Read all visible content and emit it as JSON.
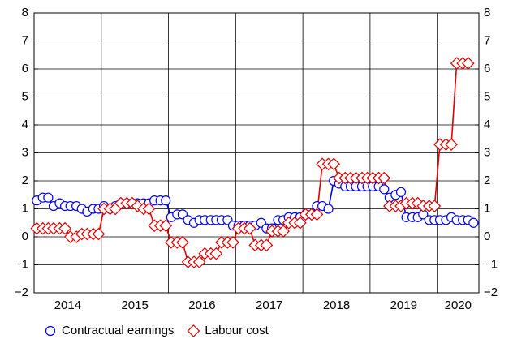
{
  "chart_data": {
    "type": "line",
    "x": [
      2014.04,
      2014.13,
      2014.21,
      2014.29,
      2014.38,
      2014.46,
      2014.54,
      2014.63,
      2014.71,
      2014.79,
      2014.88,
      2014.96,
      2015.04,
      2015.13,
      2015.21,
      2015.29,
      2015.38,
      2015.46,
      2015.54,
      2015.63,
      2015.71,
      2015.79,
      2015.88,
      2015.96,
      2016.04,
      2016.13,
      2016.21,
      2016.29,
      2016.38,
      2016.46,
      2016.54,
      2016.63,
      2016.71,
      2016.79,
      2016.88,
      2016.96,
      2017.04,
      2017.13,
      2017.21,
      2017.29,
      2017.38,
      2017.46,
      2017.54,
      2017.63,
      2017.71,
      2017.79,
      2017.88,
      2017.96,
      2018.04,
      2018.13,
      2018.21,
      2018.29,
      2018.38,
      2018.46,
      2018.54,
      2018.63,
      2018.71,
      2018.79,
      2018.88,
      2018.96,
      2019.04,
      2019.13,
      2019.21,
      2019.29,
      2019.38,
      2019.46,
      2019.54,
      2019.63,
      2019.71,
      2019.79,
      2019.88,
      2019.96,
      2020.04,
      2020.13,
      2020.21,
      2020.29,
      2020.38,
      2020.46,
      2020.54
    ],
    "series": [
      {
        "name": "Contractual earnings",
        "color": "#0000ee",
        "marker": "circle",
        "values": [
          1.3,
          1.4,
          1.4,
          1.1,
          1.2,
          1.1,
          1.1,
          1.1,
          1.0,
          0.9,
          1.0,
          1.0,
          1.1,
          1.0,
          1.1,
          1.2,
          1.2,
          1.2,
          1.2,
          1.2,
          1.2,
          1.3,
          1.3,
          1.3,
          0.7,
          0.8,
          0.8,
          0.6,
          0.5,
          0.6,
          0.6,
          0.6,
          0.6,
          0.6,
          0.6,
          0.4,
          0.4,
          0.4,
          0.4,
          0.4,
          0.5,
          0.3,
          0.3,
          0.6,
          0.6,
          0.7,
          0.7,
          0.7,
          0.8,
          0.8,
          1.1,
          1.1,
          1.0,
          2.0,
          1.9,
          1.8,
          1.8,
          1.8,
          1.8,
          1.8,
          1.8,
          1.8,
          1.7,
          1.4,
          1.5,
          1.6,
          0.7,
          0.7,
          0.7,
          0.8,
          0.6,
          0.6,
          0.6,
          0.6,
          0.7,
          0.6,
          0.6,
          0.6,
          0.5
        ]
      },
      {
        "name": "Labour cost",
        "color": "#e00000",
        "marker": "diamond",
        "values": [
          0.3,
          0.3,
          0.3,
          0.3,
          0.3,
          0.3,
          0.0,
          0.0,
          0.1,
          0.1,
          0.1,
          0.1,
          1.0,
          1.0,
          1.0,
          1.2,
          1.2,
          1.2,
          1.1,
          1.0,
          1.0,
          0.4,
          0.4,
          0.4,
          -0.2,
          -0.2,
          -0.2,
          -0.9,
          -0.9,
          -0.9,
          -0.6,
          -0.6,
          -0.6,
          -0.2,
          -0.2,
          -0.2,
          0.3,
          0.3,
          0.3,
          -0.3,
          -0.3,
          -0.3,
          0.2,
          0.2,
          0.2,
          0.5,
          0.5,
          0.5,
          0.8,
          0.8,
          0.8,
          2.6,
          2.6,
          2.6,
          2.1,
          2.1,
          2.1,
          2.1,
          2.1,
          2.1,
          2.1,
          2.1,
          2.1,
          1.1,
          1.1,
          1.1,
          1.2,
          1.2,
          1.2,
          1.1,
          1.1,
          1.1,
          3.3,
          3.3,
          3.3,
          6.2,
          6.2,
          6.2,
          null
        ]
      }
    ],
    "xlim": [
      2014,
      2020.62
    ],
    "xticks": [
      2014,
      2015,
      2016,
      2017,
      2018,
      2019,
      2020
    ],
    "ylim": [
      -2,
      8
    ],
    "yticks": [
      {
        "value": -2,
        "label": "−2"
      },
      {
        "value": -1,
        "label": "−1"
      },
      0,
      1,
      2,
      3,
      4,
      5,
      6,
      7,
      8
    ],
    "y2lim": [
      -2,
      8
    ],
    "y2ticks": [
      {
        "value": -2,
        "label": "−2"
      },
      {
        "value": -1,
        "label": "−1"
      },
      0,
      1,
      2,
      3,
      4,
      5,
      6,
      7,
      8
    ],
    "grid": true,
    "legend": "bottom"
  }
}
